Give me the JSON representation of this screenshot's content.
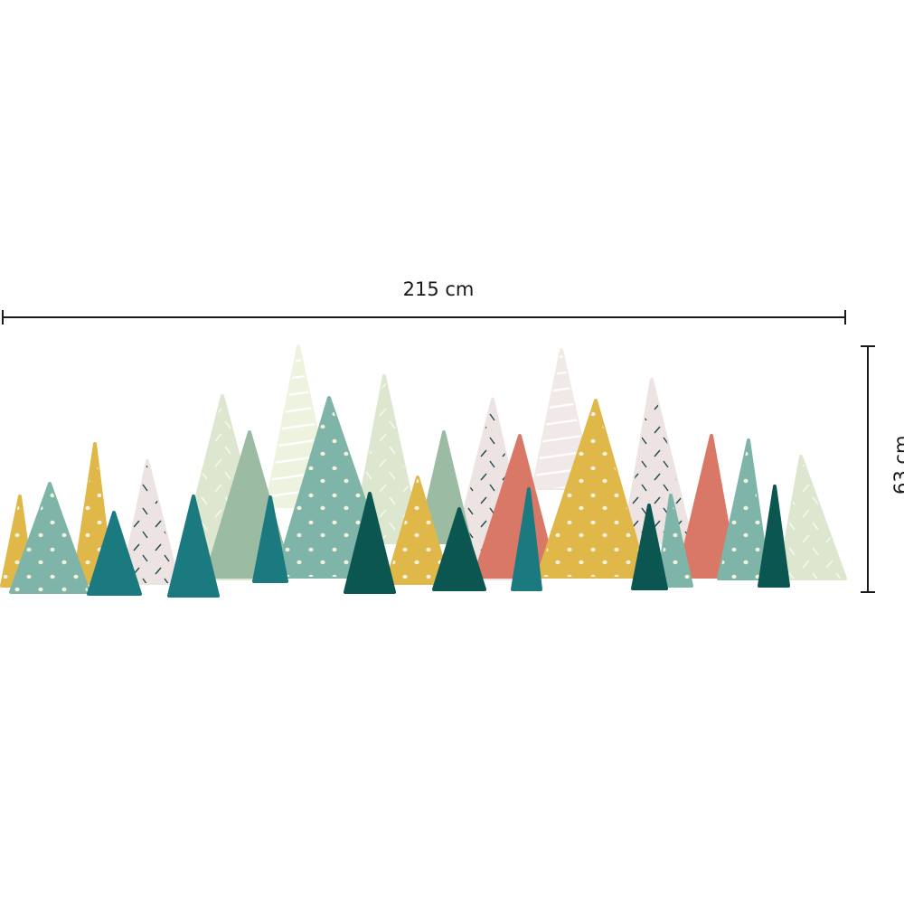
{
  "dimensions": {
    "width_label": "215 cm",
    "height_label": "63 cm"
  },
  "colors": {
    "line": "#1a1a1a",
    "pale_green": "#eef3e0",
    "pale_pink": "#f1e9e8",
    "light_green": "#dde7cf",
    "pink": "#ede3e3",
    "sage": "#9bbca3",
    "mint_teal": "#7fb5a8",
    "coral": "#d97866",
    "mustard": "#e0b84a",
    "teal": "#1a7a80",
    "dark_green": "#0b5650"
  }
}
